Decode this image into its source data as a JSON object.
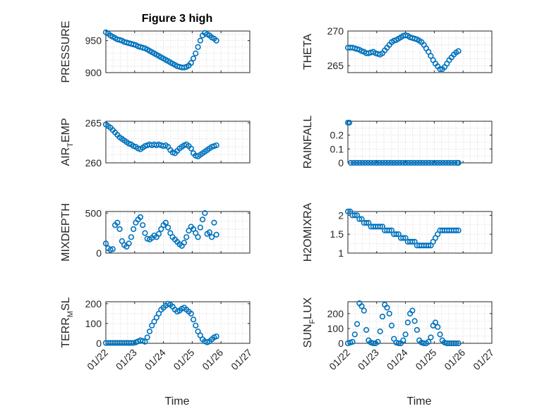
{
  "figure_title": "Figure 3 high",
  "marker_color": "#0072bd",
  "x_axis": {
    "label": "Time",
    "ticks": [
      0,
      1,
      2,
      3,
      4,
      5
    ],
    "tick_labels": [
      "01/22",
      "01/23",
      "01/24",
      "01/25",
      "01/26",
      "01/27"
    ]
  },
  "chart_data": [
    {
      "type": "scatter",
      "ylabel": "PRESSURE",
      "ylim": [
        900,
        965
      ],
      "yticks": [
        900,
        950
      ],
      "yminor": [
        910,
        920,
        930,
        940,
        960
      ],
      "x": [
        0,
        0.08,
        0.16,
        0.24,
        0.32,
        0.4,
        0.48,
        0.56,
        0.64,
        0.72,
        0.8,
        0.88,
        0.96,
        1.04,
        1.12,
        1.2,
        1.28,
        1.36,
        1.44,
        1.52,
        1.6,
        1.68,
        1.76,
        1.84,
        1.92,
        2,
        2.08,
        2.16,
        2.24,
        2.32,
        2.4,
        2.48,
        2.56,
        2.64,
        2.72,
        2.8,
        2.88,
        2.96,
        3.04,
        3.12,
        3.2,
        3.28,
        3.36,
        3.44,
        3.52,
        3.6,
        3.68,
        3.76,
        3.84
      ],
      "y": [
        963,
        961,
        958,
        956,
        954,
        952,
        951,
        950,
        948,
        947,
        946,
        945,
        944,
        943,
        941,
        940,
        939,
        938,
        936,
        934,
        932,
        930,
        928,
        926,
        924,
        922,
        920,
        918,
        916,
        914,
        912,
        910,
        909,
        908,
        908,
        909,
        911,
        915,
        922,
        930,
        940,
        950,
        958,
        962,
        960,
        958,
        955,
        953,
        950
      ]
    },
    {
      "type": "scatter",
      "ylabel": "THETA",
      "ylim": [
        264,
        270
      ],
      "yticks": [
        265,
        270
      ],
      "yminor": [
        266,
        267,
        268,
        269
      ],
      "x": [
        0,
        0.08,
        0.16,
        0.24,
        0.32,
        0.4,
        0.48,
        0.56,
        0.64,
        0.72,
        0.8,
        0.88,
        0.96,
        1.04,
        1.12,
        1.2,
        1.28,
        1.36,
        1.44,
        1.52,
        1.6,
        1.68,
        1.76,
        1.84,
        1.92,
        2,
        2.08,
        2.16,
        2.24,
        2.32,
        2.4,
        2.48,
        2.56,
        2.64,
        2.72,
        2.8,
        2.88,
        2.96,
        3.04,
        3.12,
        3.2,
        3.28,
        3.36,
        3.44,
        3.52,
        3.6,
        3.68,
        3.76,
        3.84
      ],
      "y": [
        267.6,
        267.6,
        267.6,
        267.5,
        267.4,
        267.3,
        267.1,
        267,
        266.8,
        266.8,
        266.9,
        267,
        266.8,
        266.7,
        266.6,
        266.8,
        267.2,
        267.6,
        268,
        268.4,
        268.6,
        268.7,
        268.9,
        269.1,
        269.3,
        269.4,
        269.3,
        269.1,
        269,
        268.9,
        268.8,
        268.6,
        268.4,
        268,
        267.5,
        267,
        266.4,
        265.8,
        265.3,
        264.9,
        264.5,
        264.5,
        264.8,
        265.3,
        265.8,
        266.2,
        266.6,
        266.9,
        267.1
      ]
    },
    {
      "type": "scatter",
      "ylabel": "AIR_TEMP",
      "ylim": [
        260,
        265.2
      ],
      "yticks": [
        260,
        265
      ],
      "yminor": [
        261,
        262,
        263,
        264
      ],
      "x": [
        0,
        0.08,
        0.16,
        0.24,
        0.32,
        0.4,
        0.48,
        0.56,
        0.64,
        0.72,
        0.8,
        0.88,
        0.96,
        1.04,
        1.12,
        1.2,
        1.28,
        1.36,
        1.44,
        1.52,
        1.6,
        1.68,
        1.76,
        1.84,
        1.92,
        2,
        2.08,
        2.16,
        2.24,
        2.32,
        2.4,
        2.48,
        2.56,
        2.64,
        2.72,
        2.8,
        2.88,
        2.96,
        3.04,
        3.12,
        3.2,
        3.28,
        3.36,
        3.44,
        3.52,
        3.6,
        3.68,
        3.76,
        3.84
      ],
      "y": [
        264.8,
        264.6,
        264.4,
        264.1,
        263.8,
        263.5,
        263.2,
        263,
        262.8,
        262.6,
        262.4,
        262.3,
        262.1,
        262,
        261.8,
        261.7,
        261.9,
        262.1,
        262.2,
        262.3,
        262.2,
        262.3,
        262.2,
        262.3,
        262.2,
        262.1,
        262.2,
        262,
        261.6,
        261.3,
        261.2,
        261.5,
        261.8,
        262,
        262.2,
        262.3,
        262.1,
        261.8,
        261.2,
        260.9,
        260.8,
        261,
        261.2,
        261.4,
        261.6,
        261.8,
        262,
        262.1,
        262.2
      ]
    },
    {
      "type": "scatter",
      "ylabel": "RAINFALL",
      "ylim": [
        0,
        0.3
      ],
      "yticks": [
        0,
        0.1,
        0.2
      ],
      "yminor": [
        0.05,
        0.15,
        0.25
      ],
      "x": [
        0,
        0.05,
        0.1,
        0.2,
        0.3,
        0.4,
        0.5,
        0.6,
        0.7,
        0.8,
        0.9,
        1,
        1.1,
        1.2,
        1.3,
        1.4,
        1.5,
        1.6,
        1.7,
        1.8,
        1.9,
        2,
        2.1,
        2.2,
        2.3,
        2.4,
        2.5,
        2.6,
        2.7,
        2.8,
        2.9,
        3,
        3.1,
        3.2,
        3.3,
        3.4,
        3.5,
        3.6,
        3.7,
        3.8,
        3.84
      ],
      "y": [
        0.29,
        0.29,
        0,
        0,
        0,
        0,
        0,
        0,
        0,
        0,
        0,
        0,
        0,
        0,
        0,
        0,
        0,
        0,
        0,
        0,
        0,
        0,
        0,
        0,
        0,
        0,
        0,
        0,
        0,
        0,
        0,
        0,
        0,
        0,
        0,
        0,
        0,
        0,
        0,
        0,
        0
      ]
    },
    {
      "type": "scatter",
      "ylabel": "MIXDEPTH",
      "ylim": [
        0,
        520
      ],
      "yticks": [
        0,
        500
      ],
      "yminor": [
        100,
        200,
        300,
        400
      ],
      "x": [
        0,
        0.08,
        0.16,
        0.24,
        0.32,
        0.4,
        0.48,
        0.56,
        0.64,
        0.72,
        0.8,
        0.88,
        0.96,
        1.04,
        1.12,
        1.2,
        1.28,
        1.36,
        1.44,
        1.52,
        1.6,
        1.68,
        1.76,
        1.84,
        1.92,
        2,
        2.08,
        2.16,
        2.24,
        2.32,
        2.4,
        2.48,
        2.56,
        2.64,
        2.72,
        2.8,
        2.88,
        2.96,
        3.04,
        3.12,
        3.2,
        3.28,
        3.36,
        3.44,
        3.52,
        3.6,
        3.68,
        3.76,
        3.84
      ],
      "y": [
        120,
        60,
        40,
        50,
        350,
        380,
        300,
        150,
        100,
        80,
        120,
        200,
        300,
        380,
        420,
        450,
        350,
        250,
        180,
        170,
        190,
        220,
        200,
        240,
        300,
        350,
        380,
        320,
        250,
        200,
        170,
        140,
        110,
        90,
        130,
        200,
        280,
        330,
        300,
        250,
        200,
        320,
        420,
        500,
        240,
        260,
        200,
        380,
        230
      ]
    },
    {
      "type": "scatter",
      "ylabel": "H2OMIXRA",
      "ylim": [
        1,
        2.1
      ],
      "yticks": [
        1,
        1.5,
        2
      ],
      "yminor": [
        1.25,
        1.75
      ],
      "x": [
        0,
        0.08,
        0.16,
        0.24,
        0.32,
        0.4,
        0.48,
        0.56,
        0.64,
        0.72,
        0.8,
        0.88,
        0.96,
        1.04,
        1.12,
        1.2,
        1.28,
        1.36,
        1.44,
        1.52,
        1.6,
        1.68,
        1.76,
        1.84,
        1.92,
        2,
        2.08,
        2.16,
        2.24,
        2.32,
        2.4,
        2.48,
        2.56,
        2.64,
        2.72,
        2.8,
        2.88,
        2.96,
        3.04,
        3.12,
        3.2,
        3.28,
        3.36,
        3.44,
        3.52,
        3.6,
        3.68,
        3.76,
        3.84
      ],
      "y": [
        2.1,
        2.1,
        2,
        2,
        2,
        1.9,
        1.9,
        1.8,
        1.8,
        1.8,
        1.7,
        1.7,
        1.7,
        1.7,
        1.7,
        1.7,
        1.6,
        1.6,
        1.6,
        1.6,
        1.5,
        1.5,
        1.5,
        1.4,
        1.4,
        1.4,
        1.3,
        1.3,
        1.3,
        1.3,
        1.2,
        1.2,
        1.2,
        1.2,
        1.2,
        1.2,
        1.2,
        1.3,
        1.4,
        1.5,
        1.6,
        1.6,
        1.6,
        1.6,
        1.6,
        1.6,
        1.6,
        1.6,
        1.6
      ]
    },
    {
      "type": "scatter",
      "ylabel": "TERR_MSL",
      "ylim": [
        0,
        210
      ],
      "yticks": [
        0,
        100,
        200
      ],
      "yminor": [
        50,
        150
      ],
      "x": [
        0,
        0.08,
        0.16,
        0.24,
        0.32,
        0.4,
        0.48,
        0.56,
        0.64,
        0.72,
        0.8,
        0.88,
        0.96,
        1.04,
        1.12,
        1.2,
        1.28,
        1.36,
        1.44,
        1.52,
        1.6,
        1.68,
        1.76,
        1.84,
        1.92,
        2,
        2.08,
        2.16,
        2.24,
        2.32,
        2.4,
        2.48,
        2.56,
        2.64,
        2.72,
        2.8,
        2.88,
        2.96,
        3.04,
        3.12,
        3.2,
        3.28,
        3.36,
        3.44,
        3.52,
        3.6,
        3.68,
        3.76,
        3.84
      ],
      "y": [
        2,
        2,
        2,
        2,
        2,
        2,
        2,
        2,
        2,
        2,
        2,
        2,
        2,
        5,
        10,
        15,
        12,
        8,
        30,
        60,
        90,
        110,
        130,
        150,
        170,
        180,
        190,
        200,
        195,
        185,
        170,
        160,
        165,
        175,
        180,
        170,
        160,
        150,
        120,
        90,
        60,
        40,
        20,
        10,
        5,
        10,
        20,
        30,
        35
      ]
    },
    {
      "type": "scatter",
      "ylabel": "SUN_FLUX",
      "ylim": [
        0,
        280
      ],
      "yticks": [
        0,
        100,
        200
      ],
      "yminor": [
        50,
        150,
        250
      ],
      "x": [
        0,
        0.08,
        0.16,
        0.24,
        0.32,
        0.4,
        0.48,
        0.56,
        0.64,
        0.72,
        0.8,
        0.88,
        0.96,
        1.04,
        1.12,
        1.2,
        1.28,
        1.36,
        1.44,
        1.52,
        1.6,
        1.68,
        1.76,
        1.84,
        1.92,
        2,
        2.08,
        2.16,
        2.24,
        2.32,
        2.4,
        2.48,
        2.56,
        2.64,
        2.72,
        2.8,
        2.88,
        2.96,
        3.04,
        3.12,
        3.2,
        3.28,
        3.36,
        3.44,
        3.52,
        3.6,
        3.68,
        3.76,
        3.84
      ],
      "y": [
        0,
        5,
        10,
        60,
        130,
        270,
        250,
        220,
        90,
        20,
        5,
        0,
        0,
        10,
        80,
        180,
        260,
        240,
        200,
        120,
        30,
        5,
        0,
        0,
        20,
        60,
        140,
        200,
        220,
        150,
        90,
        20,
        5,
        0,
        0,
        10,
        40,
        120,
        140,
        110,
        60,
        20,
        5,
        0,
        0,
        0,
        0,
        0,
        0
      ]
    }
  ]
}
